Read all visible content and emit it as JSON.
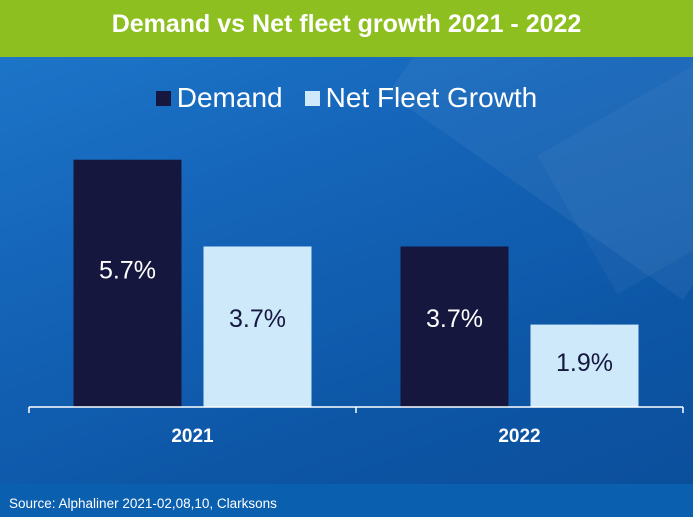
{
  "colors": {
    "demand": "#15173f",
    "net_fleet_growth": "#cde9fa",
    "title_bar": "#8cbf1f",
    "background": "#1464b8",
    "axis": "#ffffff"
  },
  "chart_data": {
    "type": "bar",
    "title": "Demand vs Net fleet growth 2021 - 2022",
    "categories": [
      "2021",
      "2022"
    ],
    "series": [
      {
        "name": "Demand",
        "values": [
          5.7,
          3.7
        ],
        "labels": [
          "5.7%",
          "3.7%"
        ]
      },
      {
        "name": "Net Fleet Growth",
        "values": [
          3.7,
          1.9
        ],
        "labels": [
          "3.7%",
          "1.9%"
        ]
      }
    ],
    "ylim": [
      0,
      6.8
    ],
    "grid": false,
    "legend_position": "top"
  },
  "source": "Source: Alphaliner 2021-02,08,10, Clarksons"
}
